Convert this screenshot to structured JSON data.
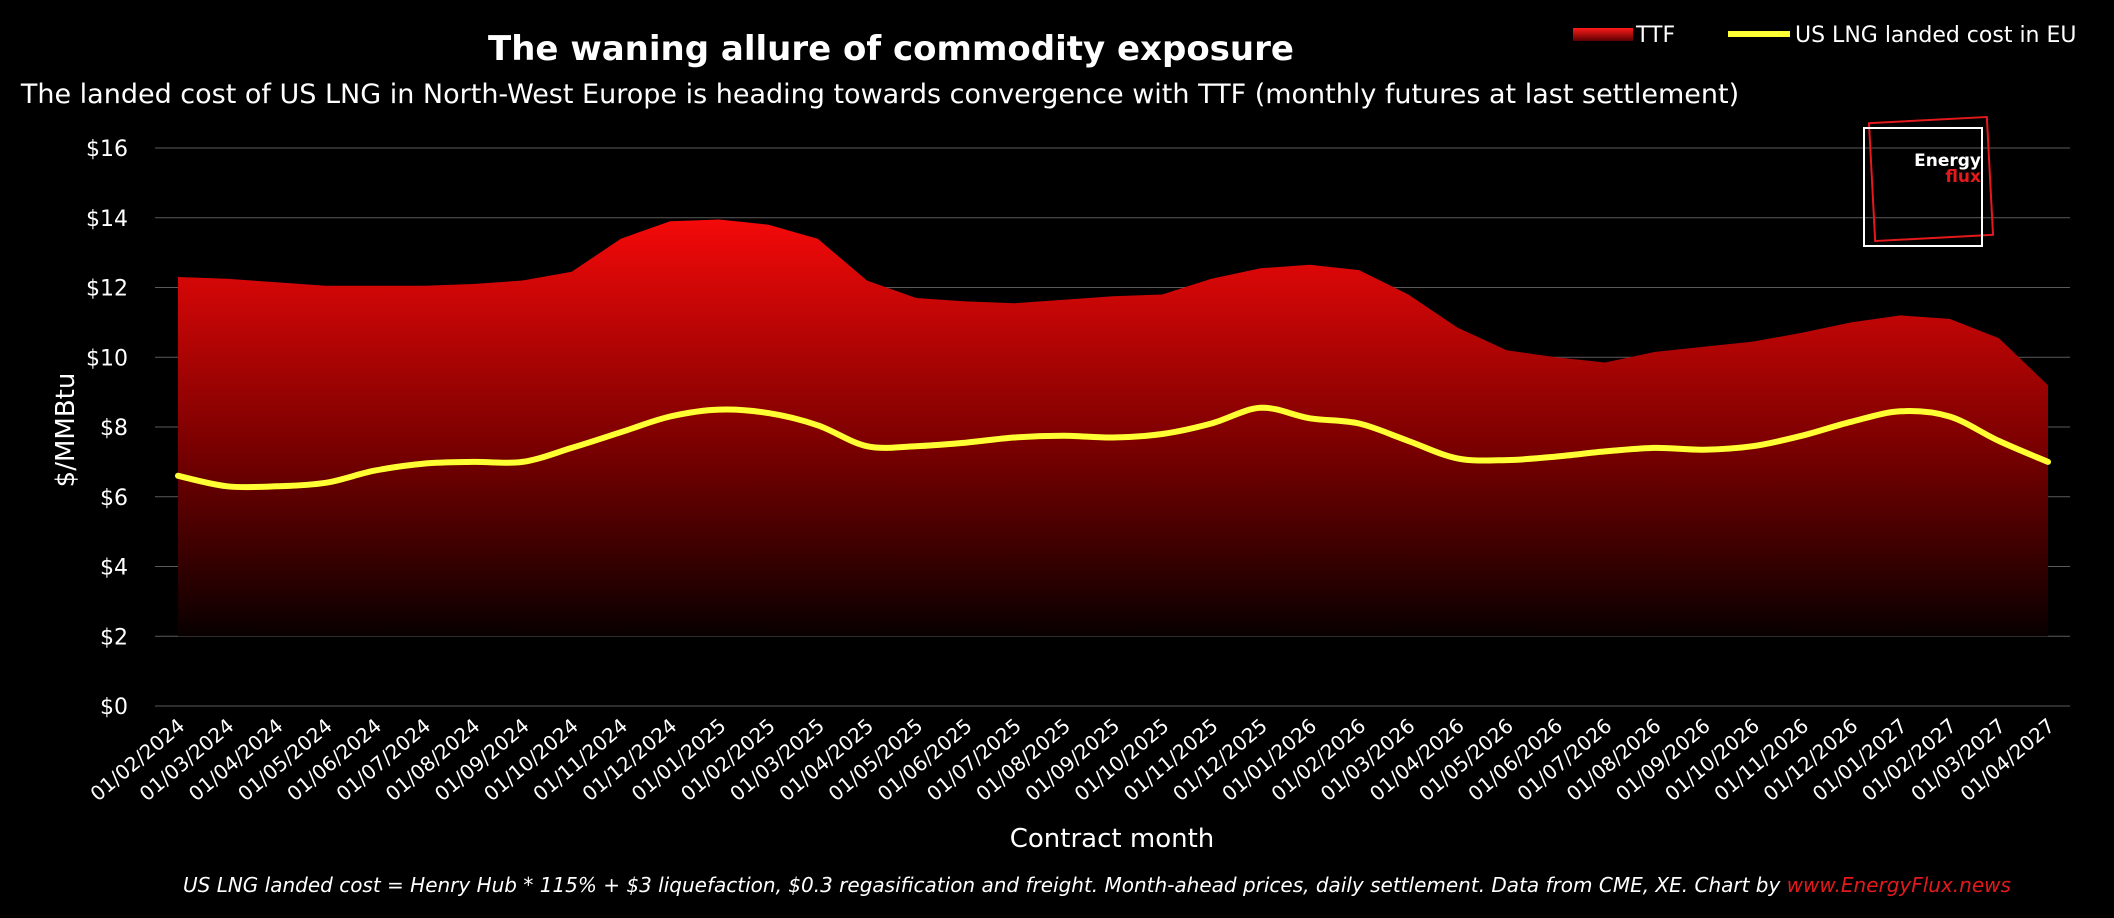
{
  "colors": {
    "background": "#000000",
    "ttf_area_top": "#ff0a0a",
    "ttf_area_bottom": "#000000",
    "lng_line": "#ffff33",
    "gridline": "#5a5a5a",
    "accent_red": "#e4191c"
  },
  "logo": {
    "line1": "Energy",
    "line2": "flux"
  },
  "footnote": {
    "text": "US LNG landed cost = Henry Hub * 115% + $3 liquefaction, $0.3 regasification and freight. Month-ahead prices, daily settlement. Data from CME, XE. Chart by ",
    "link": "www.EnergyFlux.news"
  },
  "chart_data": {
    "type": "area",
    "title": "The waning allure of commodity exposure",
    "subtitle": "The landed cost of US LNG in North-West Europe is heading towards convergence with TTF (monthly futures at last settlement)",
    "xlabel": "Contract month",
    "ylabel": "$/MMBtu",
    "ylim": [
      0,
      16
    ],
    "yticks": [
      0,
      2,
      4,
      6,
      8,
      10,
      12,
      14,
      16
    ],
    "ytick_labels": [
      "$0",
      "$2",
      "$4",
      "$6",
      "$8",
      "$10",
      "$12",
      "$14",
      "$16"
    ],
    "legend_position": "top-right",
    "categories": [
      "01/02/2024",
      "01/03/2024",
      "01/04/2024",
      "01/05/2024",
      "01/06/2024",
      "01/07/2024",
      "01/08/2024",
      "01/09/2024",
      "01/10/2024",
      "01/11/2024",
      "01/12/2024",
      "01/01/2025",
      "01/02/2025",
      "01/03/2025",
      "01/04/2025",
      "01/05/2025",
      "01/06/2025",
      "01/07/2025",
      "01/08/2025",
      "01/09/2025",
      "01/10/2025",
      "01/11/2025",
      "01/12/2025",
      "01/01/2026",
      "01/02/2026",
      "01/03/2026",
      "01/04/2026",
      "01/05/2026",
      "01/06/2026",
      "01/07/2026",
      "01/08/2026",
      "01/09/2026",
      "01/10/2026",
      "01/11/2026",
      "01/12/2026",
      "01/01/2027",
      "01/02/2027",
      "01/03/2027",
      "01/04/2027"
    ],
    "series": [
      {
        "name": "TTF",
        "type": "area",
        "values": [
          12.3,
          12.25,
          12.15,
          12.05,
          12.05,
          12.05,
          12.1,
          12.2,
          12.45,
          13.4,
          13.9,
          13.95,
          13.8,
          13.4,
          12.2,
          11.7,
          11.6,
          11.55,
          11.65,
          11.75,
          11.8,
          12.25,
          12.55,
          12.65,
          12.5,
          11.8,
          10.85,
          10.2,
          10.0,
          9.85,
          10.15,
          10.3,
          10.45,
          10.7,
          11.0,
          11.2,
          11.1,
          10.55,
          9.2
        ]
      },
      {
        "name": "US LNG landed cost in EU",
        "type": "line",
        "values": [
          6.6,
          6.3,
          6.3,
          6.4,
          6.75,
          6.95,
          7.0,
          7.0,
          7.4,
          7.85,
          8.3,
          8.5,
          8.4,
          8.05,
          7.45,
          7.45,
          7.55,
          7.7,
          7.75,
          7.7,
          7.8,
          8.1,
          8.55,
          8.25,
          8.1,
          7.6,
          7.1,
          7.05,
          7.15,
          7.3,
          7.4,
          7.35,
          7.45,
          7.75,
          8.15,
          8.45,
          8.3,
          7.6,
          7.0
        ]
      }
    ]
  }
}
